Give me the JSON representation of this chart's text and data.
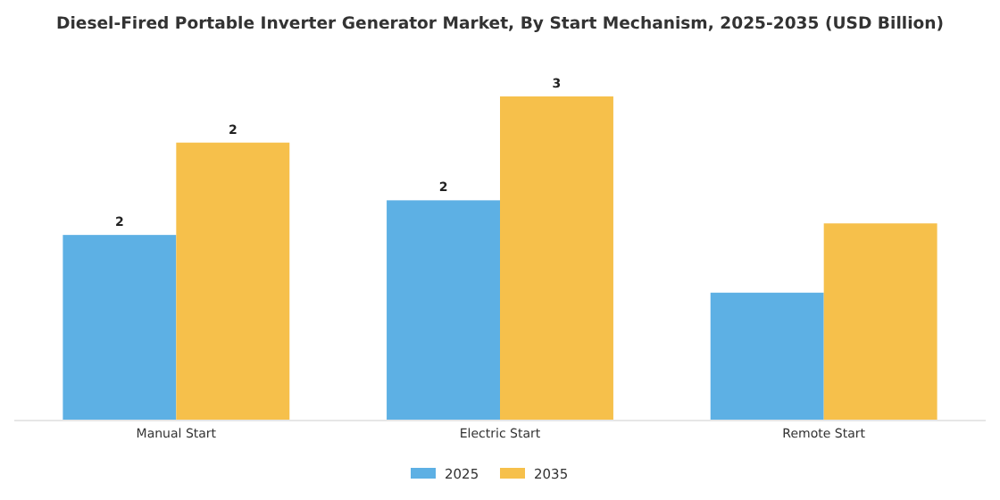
{
  "chart_data": {
    "type": "bar",
    "title": "Diesel-Fired Portable Inverter Generator Market, By Start Mechanism, 2025-2035 (USD Billion)",
    "categories": [
      "Manual Start",
      "Electric Start",
      "Remote Start"
    ],
    "legend": "bottom",
    "series": [
      {
        "name": "2025",
        "color": "#5db0e4",
        "values": [
          1.6,
          1.9,
          1.1
        ],
        "value_labels": [
          "2",
          "2",
          null
        ]
      },
      {
        "name": "2035",
        "color": "#f6c04b",
        "values": [
          2.4,
          2.8,
          1.7
        ],
        "value_labels": [
          "2",
          "3",
          null
        ]
      }
    ]
  }
}
